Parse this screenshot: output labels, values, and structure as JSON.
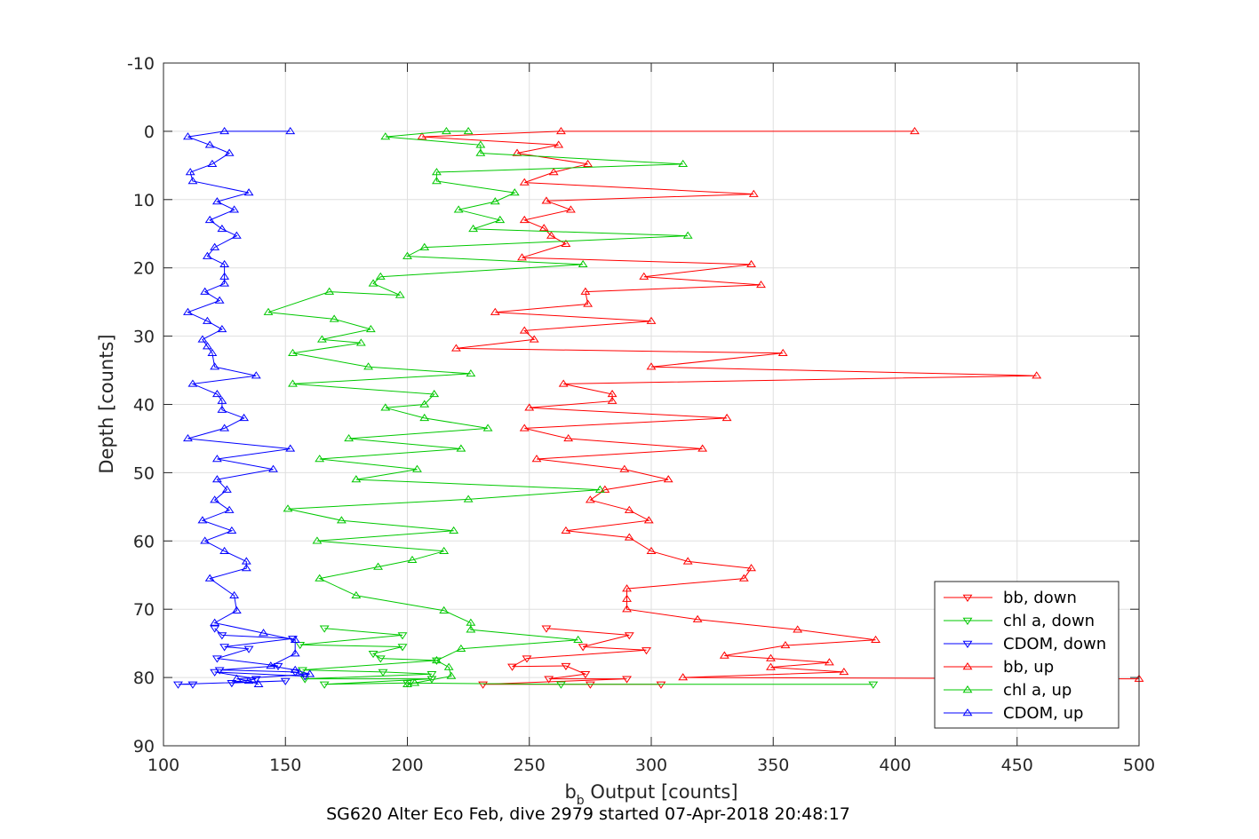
{
  "chart_data": {
    "type": "line",
    "title": "",
    "caption": "SG620 Alter Eco Feb, dive 2979 started 07-Apr-2018 20:48:17",
    "xlabel": {
      "main": "b",
      "sub": "b",
      "rest": " Output [counts]"
    },
    "ylabel": "Depth [counts]",
    "xlim": [
      100,
      500
    ],
    "ylim": [
      -10,
      90
    ],
    "y_reversed": true,
    "grid": true,
    "legend_position": "bottom-right",
    "xticks": [
      100,
      150,
      200,
      250,
      300,
      350,
      400,
      450,
      500
    ],
    "yticks": [
      -10,
      0,
      10,
      20,
      30,
      40,
      50,
      60,
      70,
      80,
      90
    ],
    "series": [
      {
        "name": "bb, down",
        "color": "#ff0000",
        "marker": "triangle-down",
        "points": [
          [
            257,
            72.8
          ],
          [
            291,
            73.8
          ],
          [
            272,
            75.5
          ],
          [
            298,
            76.0
          ],
          [
            249,
            77.2
          ],
          [
            243,
            78.4
          ],
          [
            265,
            78.3
          ],
          [
            273,
            79.5
          ],
          [
            258,
            80.2
          ],
          [
            290,
            80.2
          ],
          [
            231,
            81.0
          ],
          [
            275,
            81.0
          ],
          [
            304,
            81.0
          ]
        ]
      },
      {
        "name": "chl a, down",
        "color": "#00c800",
        "marker": "triangle-down",
        "points": [
          [
            166,
            72.8
          ],
          [
            198,
            73.8
          ],
          [
            156,
            75.2
          ],
          [
            198,
            75.5
          ],
          [
            186,
            76.5
          ],
          [
            189,
            77.2
          ],
          [
            212,
            77.5
          ],
          [
            157,
            78.9
          ],
          [
            190,
            79.2
          ],
          [
            210,
            79.5
          ],
          [
            158,
            80.2
          ],
          [
            210,
            80.2
          ],
          [
            166,
            81.0
          ],
          [
            200,
            80.8
          ],
          [
            263,
            81.0
          ],
          [
            391,
            81.0
          ]
        ]
      },
      {
        "name": "CDOM, down",
        "color": "#0000ff",
        "marker": "triangle-down",
        "points": [
          [
            121,
            72.8
          ],
          [
            124,
            73.8
          ],
          [
            153,
            74.3
          ],
          [
            125,
            75.5
          ],
          [
            135,
            75.8
          ],
          [
            122,
            77.2
          ],
          [
            147,
            78.3
          ],
          [
            123,
            78.9
          ],
          [
            154,
            79.2
          ],
          [
            158,
            79.8
          ],
          [
            121,
            79.2
          ],
          [
            138,
            80.2
          ],
          [
            128,
            80.8
          ],
          [
            150,
            80.5
          ],
          [
            106,
            81.0
          ],
          [
            112,
            81.0
          ]
        ]
      },
      {
        "name": "bb, up",
        "color": "#ff0000",
        "marker": "triangle-up",
        "points": [
          [
            408,
            0.0
          ],
          [
            263,
            0.0
          ],
          [
            206,
            0.8
          ],
          [
            262,
            2.0
          ],
          [
            245,
            3.2
          ],
          [
            274,
            4.8
          ],
          [
            260,
            6.0
          ],
          [
            248,
            7.5
          ],
          [
            342,
            9.2
          ],
          [
            257,
            10.2
          ],
          [
            267,
            11.5
          ],
          [
            248,
            13.0
          ],
          [
            256,
            14.2
          ],
          [
            259,
            15.3
          ],
          [
            265,
            16.5
          ],
          [
            247,
            18.5
          ],
          [
            341,
            19.5
          ],
          [
            297,
            21.3
          ],
          [
            345,
            22.5
          ],
          [
            273,
            23.5
          ],
          [
            274,
            25.3
          ],
          [
            236,
            26.5
          ],
          [
            300,
            27.8
          ],
          [
            248,
            29.2
          ],
          [
            252,
            30.5
          ],
          [
            220,
            31.8
          ],
          [
            354,
            32.5
          ],
          [
            300,
            34.5
          ],
          [
            458,
            35.8
          ],
          [
            264,
            37.0
          ],
          [
            284,
            38.5
          ],
          [
            284,
            39.5
          ],
          [
            250,
            40.5
          ],
          [
            331,
            42.0
          ],
          [
            248,
            43.5
          ],
          [
            266,
            45.0
          ],
          [
            321,
            46.5
          ],
          [
            253,
            48.0
          ],
          [
            289,
            49.5
          ],
          [
            307,
            51.0
          ],
          [
            281,
            52.5
          ],
          [
            275,
            54.0
          ],
          [
            291,
            55.5
          ],
          [
            299,
            57.0
          ],
          [
            265,
            58.5
          ],
          [
            291,
            59.5
          ],
          [
            300,
            61.5
          ],
          [
            315,
            63.0
          ],
          [
            341,
            64.0
          ],
          [
            338,
            65.5
          ],
          [
            290,
            67.0
          ],
          [
            290,
            68.5
          ],
          [
            290,
            70.0
          ],
          [
            319,
            71.5
          ],
          [
            360,
            73.0
          ],
          [
            392,
            74.5
          ],
          [
            355,
            75.3
          ],
          [
            330,
            76.8
          ],
          [
            349,
            77.2
          ],
          [
            373,
            77.8
          ],
          [
            349,
            78.5
          ],
          [
            379,
            79.2
          ],
          [
            313,
            80.0
          ],
          [
            500,
            80.2
          ]
        ]
      },
      {
        "name": "chl a, up",
        "color": "#00c800",
        "marker": "triangle-up",
        "points": [
          [
            225,
            0.0
          ],
          [
            216,
            0.0
          ],
          [
            191,
            0.8
          ],
          [
            230,
            2.0
          ],
          [
            230,
            3.2
          ],
          [
            313,
            4.8
          ],
          [
            212,
            6.0
          ],
          [
            212,
            7.3
          ],
          [
            244,
            9.0
          ],
          [
            236,
            10.3
          ],
          [
            221,
            11.5
          ],
          [
            238,
            13.0
          ],
          [
            227,
            14.3
          ],
          [
            315,
            15.3
          ],
          [
            207,
            17.0
          ],
          [
            200,
            18.3
          ],
          [
            272,
            19.5
          ],
          [
            189,
            21.3
          ],
          [
            186,
            22.3
          ],
          [
            197,
            24.0
          ],
          [
            168,
            23.5
          ],
          [
            143,
            26.5
          ],
          [
            170,
            27.5
          ],
          [
            185,
            29.0
          ],
          [
            165,
            30.5
          ],
          [
            181,
            31.0
          ],
          [
            153,
            32.5
          ],
          [
            184,
            34.5
          ],
          [
            226,
            35.5
          ],
          [
            153,
            37.0
          ],
          [
            211,
            38.5
          ],
          [
            207,
            40.0
          ],
          [
            191,
            40.5
          ],
          [
            207,
            42.0
          ],
          [
            233,
            43.5
          ],
          [
            176,
            45.0
          ],
          [
            222,
            46.5
          ],
          [
            164,
            48.0
          ],
          [
            204,
            49.5
          ],
          [
            179,
            51.0
          ],
          [
            279,
            52.5
          ],
          [
            225,
            53.9
          ],
          [
            151,
            55.3
          ],
          [
            173,
            57.0
          ],
          [
            219,
            58.5
          ],
          [
            163,
            60.0
          ],
          [
            215,
            61.5
          ],
          [
            202,
            62.8
          ],
          [
            188,
            63.8
          ],
          [
            164,
            65.5
          ],
          [
            179,
            68.0
          ],
          [
            215,
            70.2
          ],
          [
            226,
            72.0
          ],
          [
            226,
            73.0
          ],
          [
            270,
            74.5
          ],
          [
            222,
            75.8
          ],
          [
            212,
            77.5
          ],
          [
            217,
            78.5
          ],
          [
            218,
            79.8
          ],
          [
            203,
            80.8
          ],
          [
            200,
            81.0
          ]
        ]
      },
      {
        "name": "CDOM, up",
        "color": "#0000ff",
        "marker": "triangle-up",
        "points": [
          [
            152,
            0.0
          ],
          [
            125,
            0.0
          ],
          [
            110,
            0.8
          ],
          [
            119,
            2.0
          ],
          [
            127,
            3.2
          ],
          [
            120,
            4.8
          ],
          [
            111,
            6.0
          ],
          [
            112,
            7.3
          ],
          [
            135,
            9.0
          ],
          [
            122,
            10.3
          ],
          [
            129,
            11.5
          ],
          [
            119,
            13.0
          ],
          [
            124,
            14.3
          ],
          [
            130,
            15.3
          ],
          [
            121,
            17.0
          ],
          [
            118,
            18.3
          ],
          [
            125,
            19.5
          ],
          [
            125,
            21.3
          ],
          [
            125,
            22.3
          ],
          [
            117,
            23.5
          ],
          [
            123,
            24.8
          ],
          [
            110,
            26.5
          ],
          [
            118,
            27.8
          ],
          [
            124,
            29.0
          ],
          [
            116,
            30.5
          ],
          [
            118,
            31.5
          ],
          [
            120,
            32.5
          ],
          [
            121,
            34.5
          ],
          [
            138,
            35.8
          ],
          [
            112,
            37.0
          ],
          [
            122,
            38.5
          ],
          [
            124,
            39.5
          ],
          [
            124,
            40.8
          ],
          [
            133,
            42.0
          ],
          [
            125,
            43.5
          ],
          [
            110,
            45.0
          ],
          [
            152,
            46.5
          ],
          [
            122,
            48.0
          ],
          [
            145,
            49.5
          ],
          [
            122,
            51.0
          ],
          [
            126,
            52.5
          ],
          [
            121,
            54.0
          ],
          [
            127,
            55.5
          ],
          [
            116,
            57.0
          ],
          [
            128,
            58.5
          ],
          [
            117,
            60.0
          ],
          [
            125,
            61.5
          ],
          [
            134,
            63.0
          ],
          [
            134,
            64.0
          ],
          [
            119,
            65.5
          ],
          [
            129,
            68.0
          ],
          [
            130,
            70.2
          ],
          [
            121,
            72.0
          ],
          [
            141,
            73.5
          ],
          [
            154,
            74.5
          ],
          [
            154,
            76.5
          ],
          [
            144,
            78.3
          ],
          [
            154,
            78.9
          ],
          [
            160,
            79.5
          ],
          [
            130,
            80.2
          ],
          [
            135,
            80.5
          ],
          [
            139,
            81.0
          ]
        ]
      }
    ]
  }
}
